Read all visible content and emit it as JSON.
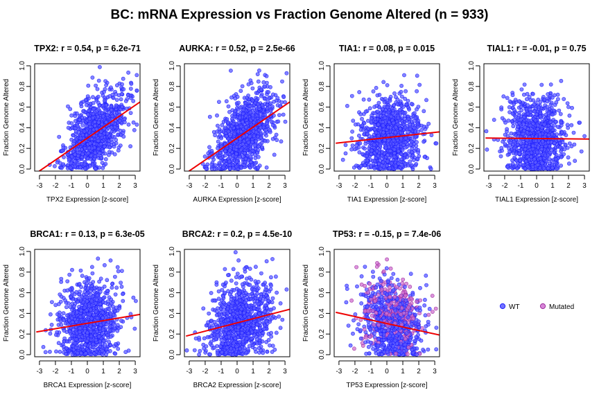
{
  "title": "BC: mRNA Expression vs Fraction Genome Altered (n = 933)",
  "colors": {
    "wt_fill": "#5b5bff",
    "wt_stroke": "#1a1aff",
    "mutated_fill": "#d070d0",
    "mutated_stroke": "#9a2a9a",
    "regression": "#ee0000"
  },
  "legend": {
    "wt": "WT",
    "mutated": "Mutated"
  },
  "chart_data": [
    {
      "type": "scatter",
      "title": "TPX2: r = 0.54, p = 6.2e-71",
      "xlabel": "TPX2 Expression [z-score]",
      "ylabel": "Fraction Genome Altered",
      "xlim": [
        -3.3,
        3.3
      ],
      "ylim": [
        -0.02,
        1.02
      ],
      "xticks": [
        -3,
        -2,
        -1,
        0,
        1,
        2,
        3
      ],
      "yticks": [
        0.0,
        0.2,
        0.4,
        0.6,
        0.8,
        1.0
      ],
      "fit": {
        "x": [
          -3.2,
          3.3
        ],
        "y": [
          -0.04,
          0.65
        ]
      },
      "n": 933,
      "seed": 11,
      "slope": 0.105,
      "x_mean": 0.5,
      "spread": 0.17,
      "mutated_fraction": 0
    },
    {
      "type": "scatter",
      "title": "AURKA: r = 0.52, p = 2.5e-66",
      "xlabel": "AURKA Expression [z-score]",
      "ylabel": "Fraction Genome Altered",
      "xlim": [
        -3.3,
        3.3
      ],
      "ylim": [
        -0.02,
        1.02
      ],
      "xticks": [
        -3,
        -2,
        -1,
        0,
        1,
        2,
        3
      ],
      "yticks": [
        0.0,
        0.2,
        0.4,
        0.6,
        0.8,
        1.0
      ],
      "fit": {
        "x": [
          -3.2,
          3.3
        ],
        "y": [
          -0.04,
          0.65
        ]
      },
      "n": 933,
      "seed": 23,
      "slope": 0.105,
      "x_mean": 0.4,
      "spread": 0.18,
      "mutated_fraction": 0
    },
    {
      "type": "scatter",
      "title": "TIA1: r = 0.08, p = 0.015",
      "xlabel": "TIA1 Expression [z-score]",
      "ylabel": "Fraction Genome Altered",
      "xlim": [
        -3.3,
        3.3
      ],
      "ylim": [
        -0.02,
        1.02
      ],
      "xticks": [
        -3,
        -2,
        -1,
        0,
        1,
        2,
        3
      ],
      "yticks": [
        0.0,
        0.2,
        0.4,
        0.6,
        0.8,
        1.0
      ],
      "fit": {
        "x": [
          -3.2,
          3.3
        ],
        "y": [
          0.25,
          0.36
        ]
      },
      "n": 933,
      "seed": 37,
      "slope": 0.017,
      "x_mean": 0.2,
      "spread": 0.2,
      "mutated_fraction": 0
    },
    {
      "type": "scatter",
      "title": "TIAL1: r = -0.01, p = 0.75",
      "xlabel": "TIAL1 Expression [z-score]",
      "ylabel": "Fraction Genome Altered",
      "xlim": [
        -3.3,
        3.3
      ],
      "ylim": [
        -0.02,
        1.02
      ],
      "xticks": [
        -3,
        -2,
        -1,
        0,
        1,
        2,
        3
      ],
      "yticks": [
        0.0,
        0.2,
        0.4,
        0.6,
        0.8,
        1.0
      ],
      "fit": {
        "x": [
          -3.2,
          3.3
        ],
        "y": [
          0.3,
          0.29
        ]
      },
      "n": 933,
      "seed": 41,
      "slope": -0.002,
      "x_mean": 0.0,
      "spread": 0.2,
      "mutated_fraction": 0
    },
    {
      "type": "scatter",
      "title": "BRCA1: r = 0.13, p = 6.3e-05",
      "xlabel": "BRCA1 Expression [z-score]",
      "ylabel": "Fraction Genome Altered",
      "xlim": [
        -3.3,
        3.3
      ],
      "ylim": [
        -0.02,
        1.02
      ],
      "xticks": [
        -3,
        -2,
        -1,
        0,
        1,
        2,
        3
      ],
      "yticks": [
        0.0,
        0.2,
        0.4,
        0.6,
        0.8,
        1.0
      ],
      "fit": {
        "x": [
          -3.2,
          3.3
        ],
        "y": [
          0.22,
          0.39
        ]
      },
      "n": 933,
      "seed": 53,
      "slope": 0.026,
      "x_mean": 0.1,
      "spread": 0.2,
      "mutated_fraction": 0
    },
    {
      "type": "scatter",
      "title": "BRCA2: r = 0.2, p = 4.5e-10",
      "xlabel": "BRCA2 Expression [z-score]",
      "ylabel": "Fraction Genome Altered",
      "xlim": [
        -3.3,
        3.3
      ],
      "ylim": [
        -0.02,
        1.02
      ],
      "xticks": [
        -3,
        -2,
        -1,
        0,
        1,
        2,
        3
      ],
      "yticks": [
        0.0,
        0.2,
        0.4,
        0.6,
        0.8,
        1.0
      ],
      "fit": {
        "x": [
          -3.2,
          3.3
        ],
        "y": [
          0.18,
          0.44
        ]
      },
      "n": 933,
      "seed": 67,
      "slope": 0.04,
      "x_mean": 0.2,
      "spread": 0.2,
      "mutated_fraction": 0
    },
    {
      "type": "scatter",
      "title": "TP53: r = -0.15, p = 7.4e-06",
      "xlabel": "TP53 Expression [z-score]",
      "ylabel": "Fraction Genome Altered",
      "xlim": [
        -3.3,
        3.3
      ],
      "ylim": [
        -0.02,
        1.02
      ],
      "xticks": [
        -3,
        -2,
        -1,
        0,
        1,
        2,
        3
      ],
      "yticks": [
        0.0,
        0.2,
        0.4,
        0.6,
        0.8,
        1.0
      ],
      "fit": {
        "x": [
          -3.2,
          3.3
        ],
        "y": [
          0.41,
          0.19
        ]
      },
      "n": 933,
      "seed": 79,
      "slope": -0.034,
      "x_mean": 0.3,
      "spread": 0.2,
      "mutated_fraction": 0.33
    }
  ]
}
